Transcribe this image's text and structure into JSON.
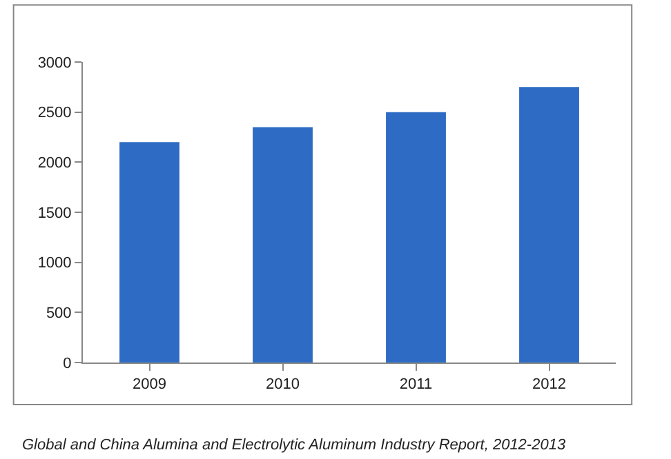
{
  "chart_data": {
    "type": "bar",
    "categories": [
      "2009",
      "2010",
      "2011",
      "2012"
    ],
    "values": [
      2200,
      2350,
      2500,
      2750
    ],
    "color": "#2e6bc4",
    "ylim": [
      0,
      3000
    ],
    "yticks": [
      0,
      500,
      1000,
      1500,
      2000,
      2500,
      3000
    ],
    "legend": false,
    "annotations": [
      "Global and China Alumina and Electrolytic Aluminum Industry Report, 2012-2013"
    ]
  }
}
